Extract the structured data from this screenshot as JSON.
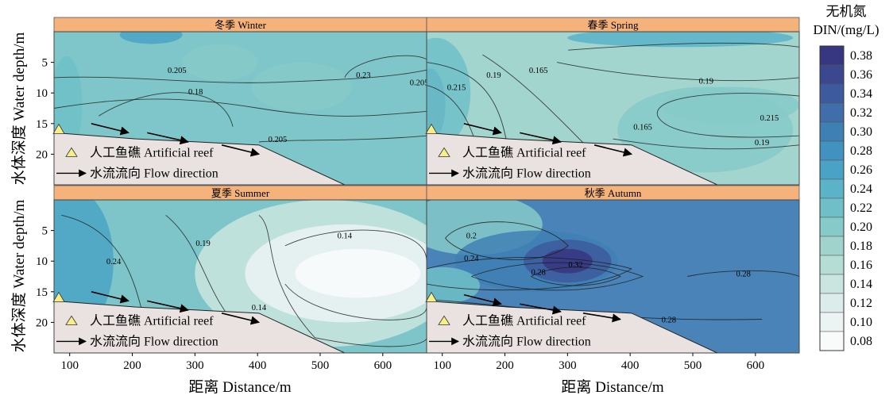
{
  "chart_data": {
    "type": "contour",
    "ylabel": "水体深度 Water depth/m",
    "xlabel": "距离 Distance/m",
    "x_ticks": [
      100,
      200,
      300,
      400,
      500,
      600
    ],
    "y_ticks": [
      5,
      10,
      15,
      20
    ],
    "xlim": [
      75,
      670
    ],
    "ylim": [
      25,
      0
    ],
    "colorbar": {
      "title_cn": "无机氮",
      "title_en": "DIN/(mg/L)",
      "ticks": [
        "0.38",
        "0.36",
        "0.34",
        "0.32",
        "0.30",
        "0.28",
        "0.26",
        "0.24",
        "0.22",
        "0.20",
        "0.18",
        "0.16",
        "0.14",
        "0.12",
        "0.10",
        "0.08"
      ],
      "colors": [
        "#373680",
        "#3b478f",
        "#3d5a9e",
        "#3f6eab",
        "#3f80b4",
        "#4292c0",
        "#4aa3c6",
        "#5bb3c8",
        "#6ebfc8",
        "#86cac9",
        "#9fd3cc",
        "#b5ddd5",
        "#cae5df",
        "#dcecea",
        "#ebf3f3",
        "#f9fbfb"
      ]
    },
    "legend": {
      "reef_label": "人工鱼礁 Artificial reef",
      "flow_label": "水流流向 Flow direction"
    },
    "panels": [
      {
        "title": "冬季 Winter",
        "base_color": "#7fc6ca",
        "contour_labels": [
          "0.23",
          "0.205",
          "0.18",
          "0.205",
          "0.205"
        ],
        "blobs": [
          {
            "x": 95,
            "y": 12,
            "rx": 25,
            "ry": 8,
            "level": 0.22
          },
          {
            "x": 340,
            "y": 5,
            "rx": 60,
            "ry": 3,
            "level": 0.2
          },
          {
            "x": 470,
            "y": 9,
            "rx": 80,
            "ry": 4,
            "level": 0.21
          },
          {
            "x": 230,
            "y": 0.5,
            "rx": 50,
            "ry": 1.5,
            "level": 0.25
          }
        ]
      },
      {
        "title": "春季 Spring",
        "base_color": "#a2d5cd",
        "contour_labels": [
          "0.19",
          "0.215",
          "0.165",
          "0.19",
          "0.215",
          "0.165",
          "0.19"
        ],
        "blobs": [
          {
            "x": 80,
            "y": 12,
            "rx": 25,
            "ry": 6,
            "level": 0.3
          },
          {
            "x": 90,
            "y": 10,
            "rx": 55,
            "ry": 9,
            "level": 0.22
          },
          {
            "x": 520,
            "y": 16,
            "rx": 140,
            "ry": 7,
            "level": 0.21
          },
          {
            "x": 560,
            "y": 12,
            "rx": 110,
            "ry": 3,
            "level": 0.2
          },
          {
            "x": 480,
            "y": 1,
            "rx": 180,
            "ry": 1.5,
            "level": 0.23
          }
        ]
      },
      {
        "title": "夏季 Summer",
        "base_color": "#7dc5c9",
        "contour_labels": [
          "0.24",
          "0.19",
          "0.14",
          "0.14"
        ],
        "blobs": [
          {
            "x": 100,
            "y": 10,
            "rx": 70,
            "ry": 12,
            "level": 0.25
          },
          {
            "x": 510,
            "y": 12,
            "rx": 210,
            "ry": 12,
            "level": 0.14
          },
          {
            "x": 540,
            "y": 12,
            "rx": 160,
            "ry": 8,
            "level": 0.1
          },
          {
            "x": 560,
            "y": 12,
            "rx": 100,
            "ry": 4,
            "level": 0.08
          }
        ]
      },
      {
        "title": "秋季 Autumn",
        "base_color": "#4a83b7",
        "contour_labels": [
          "0.2",
          "0.24",
          "0.28",
          "0.32",
          "0.28",
          "0.28"
        ],
        "blobs": [
          {
            "x": 150,
            "y": 4,
            "rx": 110,
            "ry": 5,
            "level": 0.2
          },
          {
            "x": 250,
            "y": 10,
            "rx": 130,
            "ry": 5,
            "level": 0.3
          },
          {
            "x": 300,
            "y": 10,
            "rx": 70,
            "ry": 3.5,
            "level": 0.33
          },
          {
            "x": 300,
            "y": 10,
            "rx": 40,
            "ry": 2,
            "level": 0.37
          },
          {
            "x": 100,
            "y": 14,
            "rx": 60,
            "ry": 3,
            "level": 0.22
          }
        ]
      }
    ]
  }
}
